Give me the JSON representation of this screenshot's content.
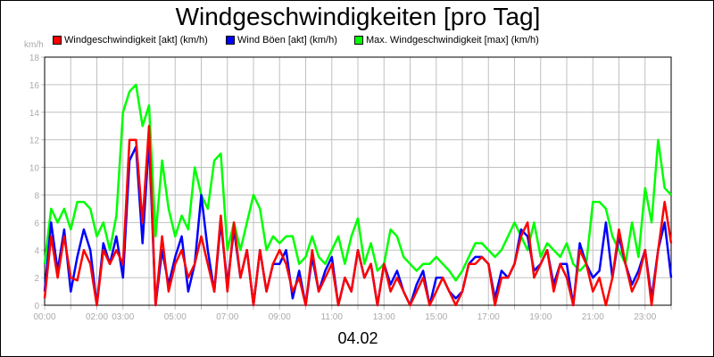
{
  "chart_data": {
    "type": "line",
    "title": "Windgeschwindigkeiten [pro Tag]",
    "ylabel": "km/h",
    "xlabel": "04.02",
    "ylim": [
      0,
      18
    ],
    "xlim_hours": [
      0,
      24
    ],
    "yticks": [
      "0",
      "2",
      "4",
      "6",
      "8",
      "10",
      "12",
      "14",
      "16",
      "18"
    ],
    "xticks": [
      {
        "h": 0,
        "label": "00:00"
      },
      {
        "h": 2,
        "label": "02:00"
      },
      {
        "h": 3,
        "label": "03:00"
      },
      {
        "h": 5,
        "label": "05:00"
      },
      {
        "h": 7,
        "label": "07:00"
      },
      {
        "h": 9,
        "label": "09:00"
      },
      {
        "h": 11,
        "label": "11:00"
      },
      {
        "h": 13,
        "label": "13:00"
      },
      {
        "h": 15,
        "label": "15:00"
      },
      {
        "h": 17,
        "label": "17:00"
      },
      {
        "h": 19,
        "label": "19:00"
      },
      {
        "h": 21,
        "label": "21:00"
      },
      {
        "h": 23,
        "label": "23:00"
      }
    ],
    "grid": true,
    "legend_position": "top",
    "series": [
      {
        "name": "Max. Windgeschwindigkeit [max] (km/h)",
        "color": "#00ff00",
        "values": [
          3,
          7,
          6,
          7,
          5.5,
          7.5,
          7.5,
          7,
          5,
          6,
          4,
          6.5,
          14,
          15.5,
          16,
          13,
          14.5,
          5,
          10.5,
          7,
          5,
          6.5,
          5.5,
          10,
          8,
          7,
          10.5,
          11,
          4,
          6,
          4,
          6,
          8,
          7,
          4,
          5,
          4.5,
          5,
          5,
          3,
          3.5,
          5,
          3.5,
          3,
          4,
          5,
          3,
          5,
          6.3,
          3,
          4.5,
          2.5,
          3,
          5.5,
          5,
          3.5,
          3,
          2.5,
          3,
          3,
          3.5,
          3,
          2.5,
          1.8,
          2.5,
          3.5,
          4.5,
          4.5,
          4,
          3.5,
          4,
          5,
          6,
          5,
          4,
          6,
          3.5,
          4.5,
          4,
          3.5,
          4.5,
          3,
          2.5,
          3,
          7.5,
          7.5,
          7,
          5,
          4,
          3,
          6,
          3.5,
          8.5,
          6,
          12,
          8.5,
          8
        ]
      },
      {
        "name": "Wind Böen [akt] (km/h)",
        "color": "#0000ff",
        "values": [
          1,
          6,
          2.5,
          5.5,
          1,
          3.5,
          5.5,
          4,
          0,
          4.5,
          3,
          5,
          2,
          10.5,
          11.5,
          4.5,
          12,
          0,
          4,
          1.5,
          3.5,
          5,
          1,
          3,
          8,
          4,
          1,
          6,
          1.5,
          5.5,
          2,
          4,
          0,
          4,
          1,
          3,
          3,
          4,
          0.5,
          2.5,
          0,
          3.5,
          1,
          2.5,
          3.5,
          0,
          2,
          1,
          4,
          2,
          3,
          0,
          3,
          1.5,
          2.5,
          1,
          0,
          1.5,
          2.5,
          0,
          2,
          2,
          1,
          0.5,
          1,
          3,
          3.5,
          3.5,
          3,
          0.5,
          2.5,
          2,
          3,
          5.5,
          5,
          2.5,
          3,
          4,
          1.5,
          3,
          3,
          0,
          4.5,
          3,
          2,
          2.5,
          6,
          2,
          5,
          3,
          1.5,
          2.5,
          4,
          0.5,
          4,
          6,
          2
        ]
      },
      {
        "name": "Windgeschwindigkeit [akt] (km/h)",
        "color": "#ff0000",
        "values": [
          0.5,
          5,
          2,
          5,
          2,
          1.8,
          4,
          3,
          0,
          4,
          3,
          4,
          3,
          12,
          12,
          6,
          13,
          0,
          5,
          1,
          3,
          4,
          2,
          3,
          5,
          3,
          1,
          6.5,
          1,
          6,
          2,
          4,
          0,
          4,
          1,
          3,
          4,
          3,
          1,
          2,
          0,
          4,
          1,
          2,
          3,
          0,
          2,
          1,
          4,
          2,
          3,
          0,
          3,
          1,
          2,
          1,
          0,
          1,
          2,
          0,
          1,
          2,
          1,
          0,
          1,
          3,
          3,
          3.5,
          3,
          0,
          2,
          2,
          3,
          5,
          6,
          2,
          3,
          4,
          1,
          3,
          2,
          0,
          4,
          3,
          1,
          2,
          0,
          2,
          5.5,
          3,
          1,
          2,
          4,
          0,
          4,
          7.5,
          4.5
        ]
      }
    ]
  },
  "legend": [
    {
      "label": "Windgeschwindigkeit [akt] (km/h)",
      "color": "#ff0000"
    },
    {
      "label": "Wind Böen [akt] (km/h)",
      "color": "#0000ff"
    },
    {
      "label": "Max. Windgeschwindigkeit [max] (km/h)",
      "color": "#00ff00"
    }
  ]
}
